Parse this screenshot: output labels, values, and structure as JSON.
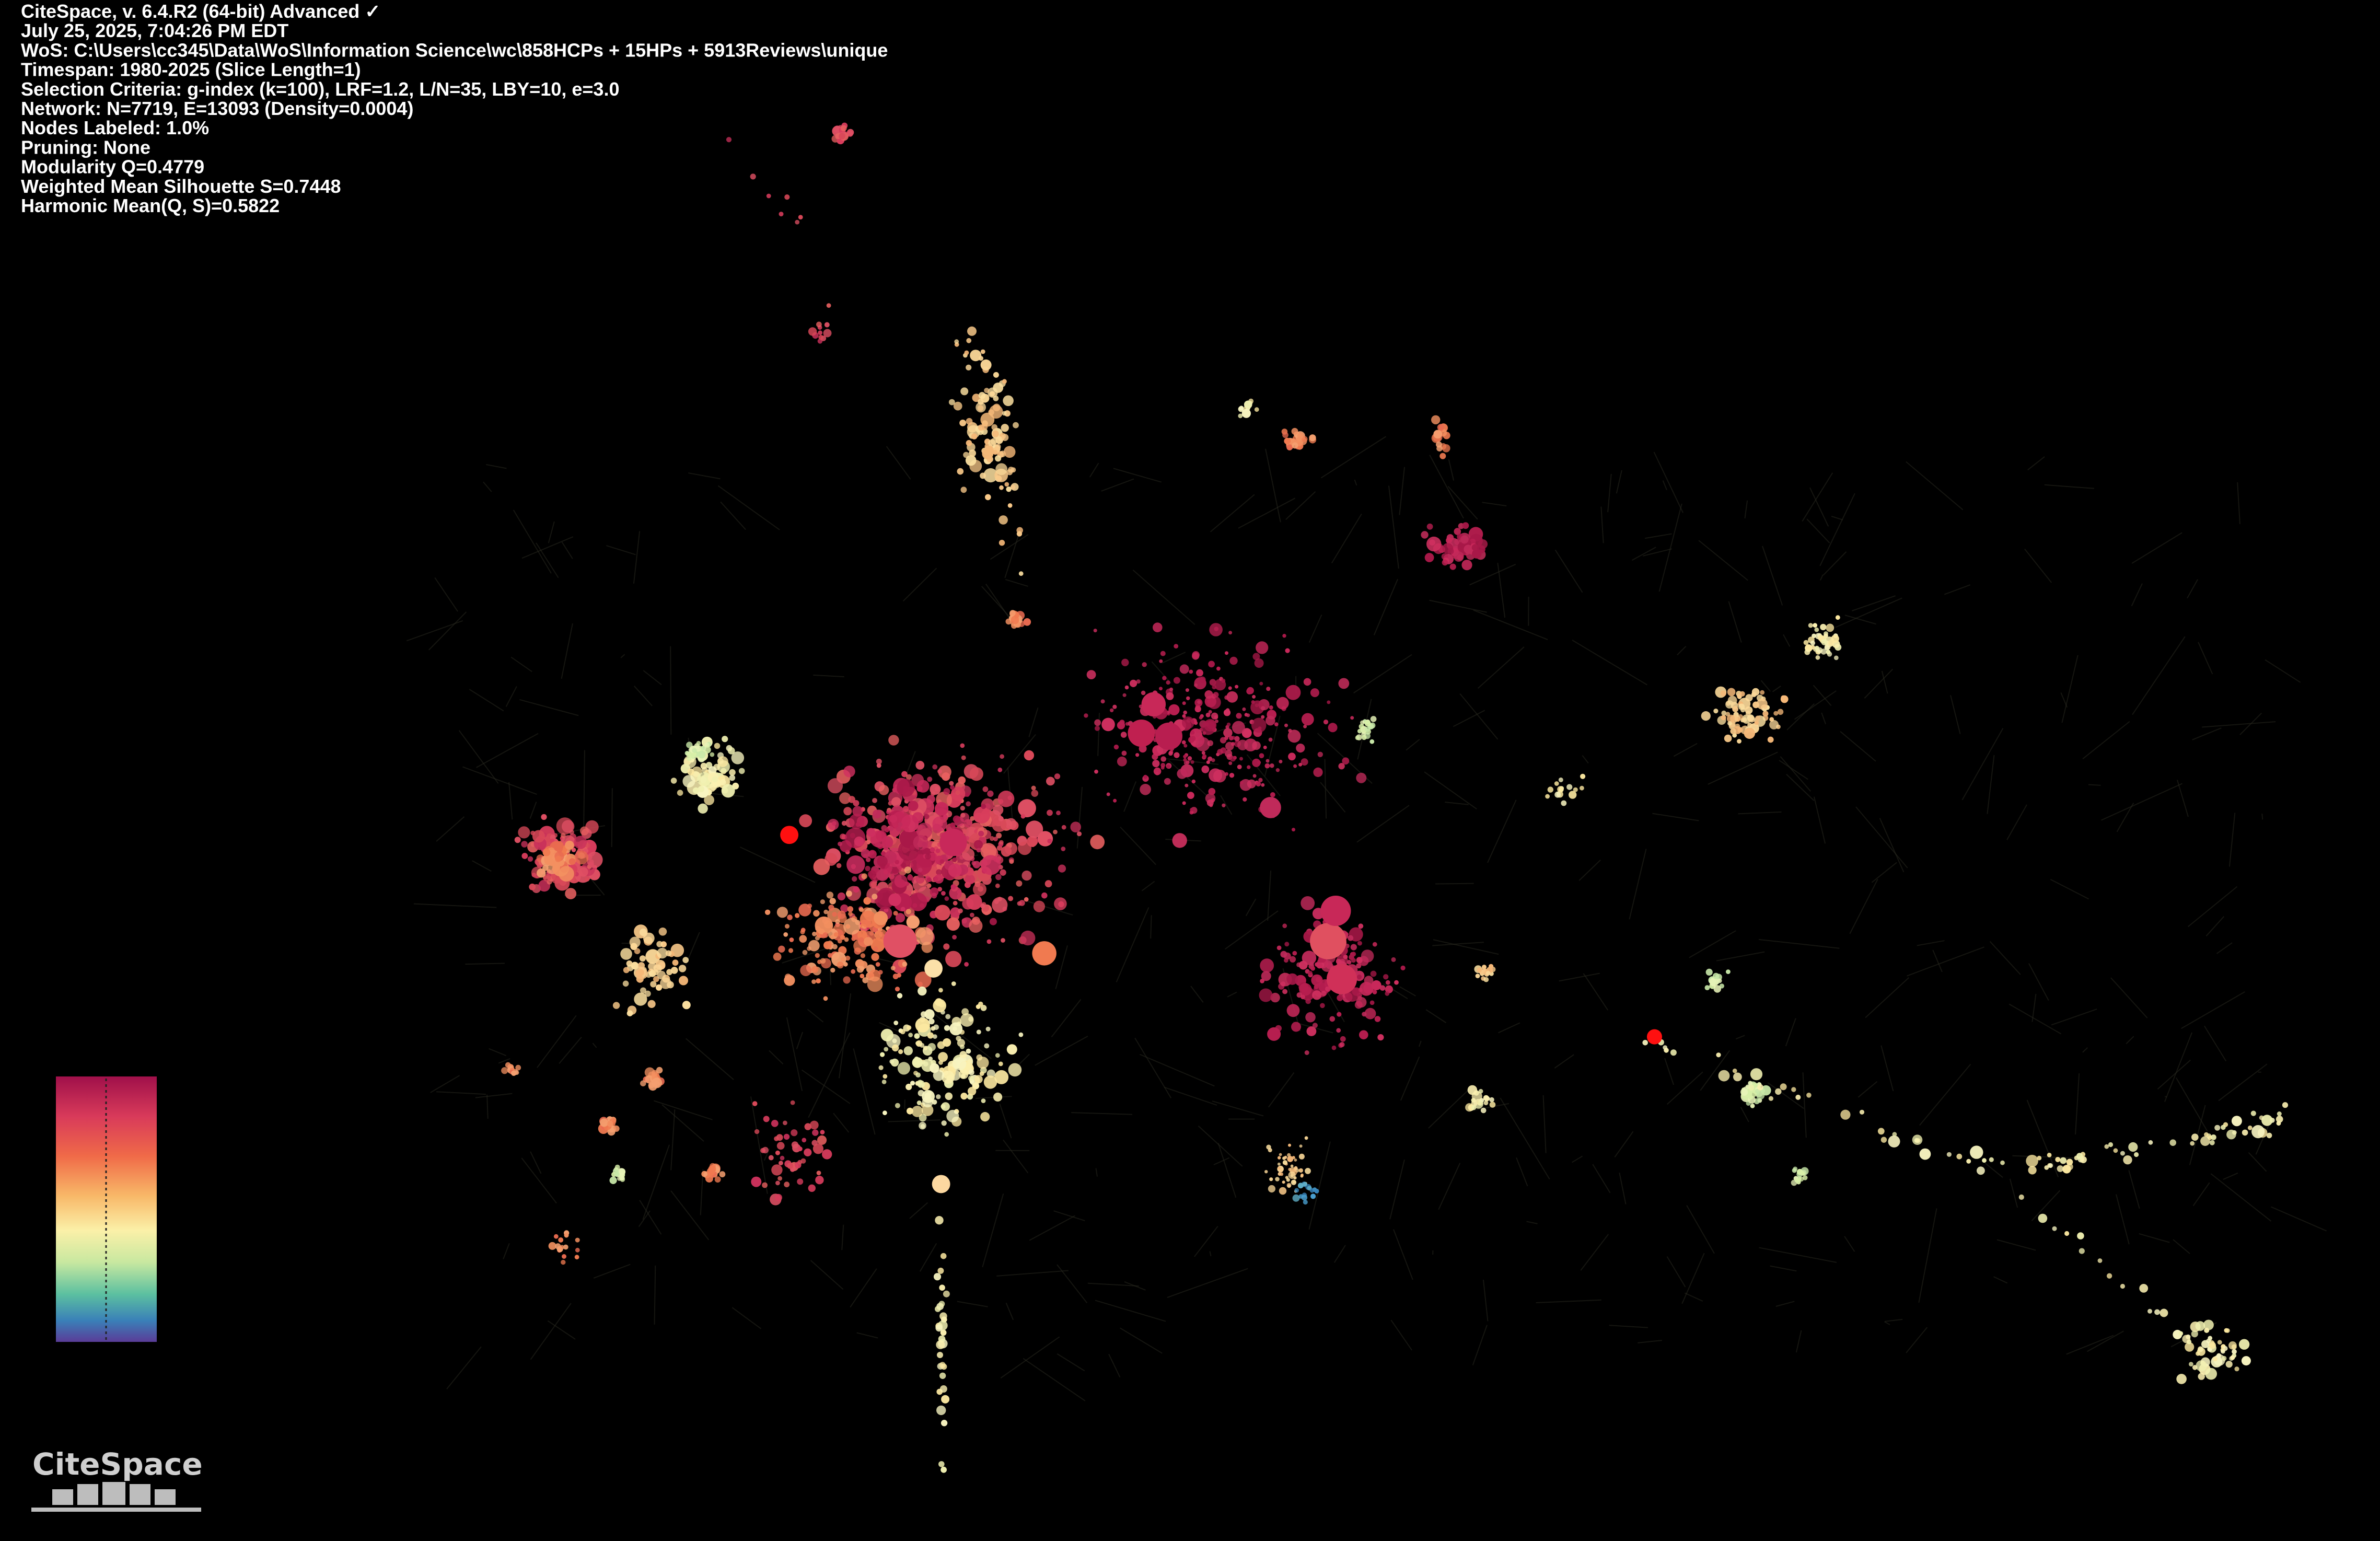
{
  "info_lines": [
    "CiteSpace, v. 6.4.R2 (64-bit) Advanced ✓",
    "July 25, 2025, 7:04:26 PM EDT",
    "WoS: C:\\Users\\cc345\\Data\\WoS\\Information Science\\wc\\858HCPs + 15HPs + 5913Reviews\\unique",
    "Timespan: 1980-2025 (Slice Length=1)",
    "Selection Criteria: g-index (k=100), LRF=1.2, L/N=35, LBY=10, e=3.0",
    "Network: N=7719, E=13093 (Density=0.0004)",
    "Nodes Labeled: 1.0%",
    "Pruning: None",
    "Modularity Q=0.4779",
    "Weighted Mean Silhouette S=0.7448",
    "Harmonic Mean(Q, S)=0.5822"
  ],
  "logo": "CiteSpace"
}
